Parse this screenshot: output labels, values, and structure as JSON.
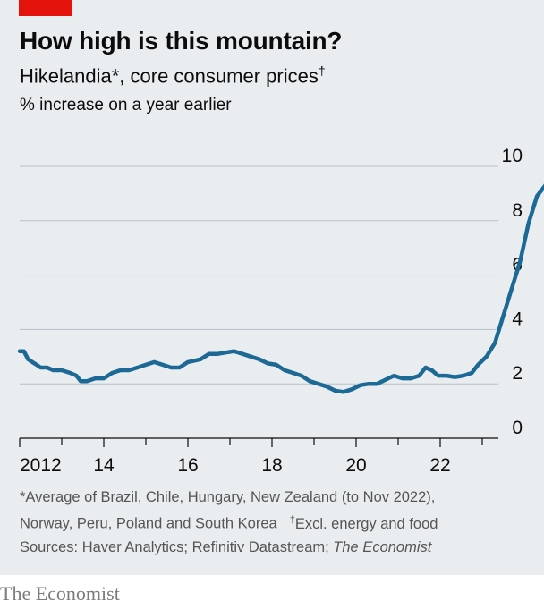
{
  "header": {
    "title": "How high is this mountain?",
    "subtitle": "Hikelandia*, core consumer prices",
    "subtitle_mark": "†",
    "unit": "% increase on a year earlier"
  },
  "footnotes": {
    "note1_line1": "*Average of Brazil, Chile, Hungary, New Zealand (to Nov 2022),",
    "note1_line2": "Norway, Peru, Poland and South Korea",
    "note2_mark": "†",
    "note2": "Excl. energy and food",
    "sources_prefix": "Sources: Haver Analytics; Refinitiv Datastream; ",
    "sources_italic": "The Economist"
  },
  "brand": "The Economist",
  "colors": {
    "line": "#1d6996",
    "grid": "#b7c1c8",
    "accent": "#e3120b",
    "panel": "#e9edf0"
  },
  "chart_data": {
    "type": "line",
    "title": "How high is this mountain?",
    "ylabel": "% increase on a year earlier",
    "ylim": [
      0,
      10
    ],
    "xlim": [
      2012,
      2024
    ],
    "yticks": [
      0,
      2,
      4,
      6,
      8,
      10
    ],
    "xticks": [
      2012,
      2014,
      2016,
      2018,
      2020,
      2022
    ],
    "xtick_labels": [
      "2012",
      "14",
      "16",
      "18",
      "20",
      "22"
    ],
    "grid": true,
    "series": [
      {
        "name": "Hikelandia core consumer prices",
        "points": [
          [
            2012.0,
            3.2
          ],
          [
            2012.1,
            3.2
          ],
          [
            2012.2,
            2.9
          ],
          [
            2012.3,
            2.8
          ],
          [
            2012.4,
            2.7
          ],
          [
            2012.5,
            2.6
          ],
          [
            2012.65,
            2.6
          ],
          [
            2012.8,
            2.5
          ],
          [
            2013.0,
            2.5
          ],
          [
            2013.2,
            2.4
          ],
          [
            2013.35,
            2.3
          ],
          [
            2013.45,
            2.1
          ],
          [
            2013.6,
            2.1
          ],
          [
            2013.8,
            2.2
          ],
          [
            2014.0,
            2.2
          ],
          [
            2014.2,
            2.4
          ],
          [
            2014.4,
            2.5
          ],
          [
            2014.6,
            2.5
          ],
          [
            2014.8,
            2.6
          ],
          [
            2015.0,
            2.7
          ],
          [
            2015.2,
            2.8
          ],
          [
            2015.4,
            2.7
          ],
          [
            2015.6,
            2.6
          ],
          [
            2015.8,
            2.6
          ],
          [
            2016.0,
            2.8
          ],
          [
            2016.3,
            2.9
          ],
          [
            2016.5,
            3.1
          ],
          [
            2016.7,
            3.1
          ],
          [
            2016.9,
            3.15
          ],
          [
            2017.1,
            3.2
          ],
          [
            2017.3,
            3.1
          ],
          [
            2017.5,
            3.0
          ],
          [
            2017.7,
            2.9
          ],
          [
            2017.9,
            2.75
          ],
          [
            2018.1,
            2.7
          ],
          [
            2018.3,
            2.5
          ],
          [
            2018.5,
            2.4
          ],
          [
            2018.7,
            2.3
          ],
          [
            2018.9,
            2.1
          ],
          [
            2019.1,
            2.0
          ],
          [
            2019.3,
            1.9
          ],
          [
            2019.5,
            1.75
          ],
          [
            2019.7,
            1.7
          ],
          [
            2019.9,
            1.8
          ],
          [
            2020.1,
            1.95
          ],
          [
            2020.3,
            2.0
          ],
          [
            2020.5,
            2.0
          ],
          [
            2020.7,
            2.15
          ],
          [
            2020.9,
            2.3
          ],
          [
            2021.1,
            2.2
          ],
          [
            2021.3,
            2.2
          ],
          [
            2021.5,
            2.3
          ],
          [
            2021.65,
            2.6
          ],
          [
            2021.8,
            2.5
          ],
          [
            2021.95,
            2.3
          ],
          [
            2022.15,
            2.3
          ],
          [
            2022.35,
            2.25
          ],
          [
            2022.55,
            2.3
          ],
          [
            2022.75,
            2.4
          ],
          [
            2022.9,
            2.7
          ],
          [
            2023.1,
            3.0
          ],
          [
            2023.3,
            3.5
          ],
          [
            2023.5,
            4.5
          ],
          [
            2023.7,
            5.5
          ],
          [
            2023.9,
            6.5
          ],
          [
            2024.1,
            7.9
          ],
          [
            2024.3,
            8.9
          ],
          [
            2024.5,
            9.3
          ],
          [
            2024.7,
            9.9
          ]
        ]
      }
    ]
  }
}
